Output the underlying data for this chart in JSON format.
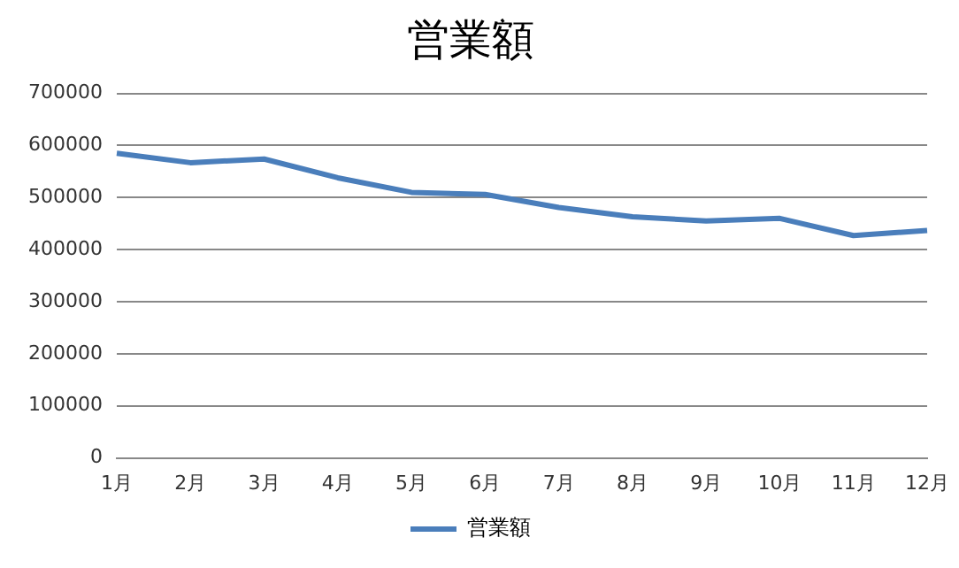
{
  "chart_data": {
    "type": "line",
    "title": "営業額",
    "categories": [
      "1月",
      "2月",
      "3月",
      "4月",
      "5月",
      "6月",
      "7月",
      "8月",
      "9月",
      "10月",
      "11月",
      "12月"
    ],
    "series": [
      {
        "name": "営業額",
        "color": "#4a7ebb",
        "values": [
          585000,
          567000,
          574000,
          538000,
          510000,
          506000,
          481000,
          463000,
          455000,
          460000,
          427000,
          437000
        ]
      }
    ],
    "ylim": [
      0,
      700000
    ],
    "yticks": [
      0,
      100000,
      200000,
      300000,
      400000,
      500000,
      600000,
      700000
    ],
    "grid": "y",
    "legend": "bottom",
    "marker": "none",
    "line_style": "solid"
  }
}
